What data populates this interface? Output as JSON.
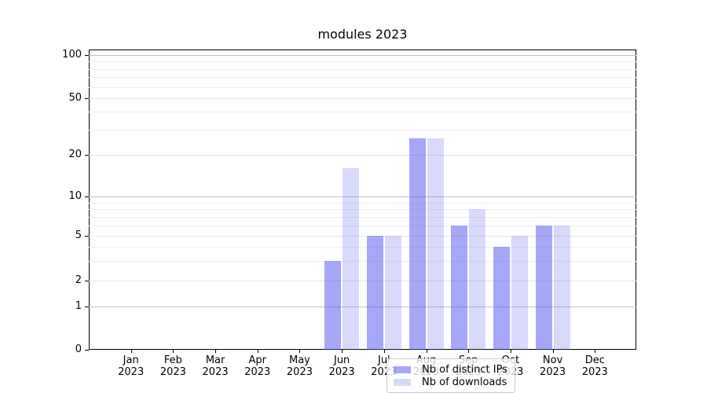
{
  "chart_data": {
    "type": "bar",
    "title": "modules 2023",
    "categories": [
      "Jan",
      "Feb",
      "Mar",
      "Apr",
      "May",
      "Jun",
      "Jul",
      "Aug",
      "Sep",
      "Oct",
      "Nov",
      "Dec"
    ],
    "year_label": "2023",
    "series": [
      {
        "name": "Nb of distinct IPs",
        "color": "rgba(80,80,240,0.5)",
        "values": [
          0,
          0,
          0,
          0,
          0,
          3,
          5,
          26,
          6,
          4,
          6,
          0
        ]
      },
      {
        "name": "Nb of downloads",
        "color": "rgba(80,80,240,0.22)",
        "values": [
          0,
          0,
          0,
          0,
          0,
          16,
          5,
          26,
          8,
          5,
          6,
          0
        ]
      }
    ],
    "y_axis": {
      "scale": "symlog",
      "ticks": [
        0,
        1,
        2,
        5,
        10,
        20,
        50,
        100
      ],
      "minor_gridlines": [
        3,
        4,
        6,
        7,
        8,
        9,
        30,
        40,
        60,
        70,
        80,
        90
      ],
      "ylim": [
        0,
        110
      ]
    },
    "x_axis": {
      "tick_label_lines": 2
    },
    "grid": true,
    "legend_position": "bottom-center"
  }
}
